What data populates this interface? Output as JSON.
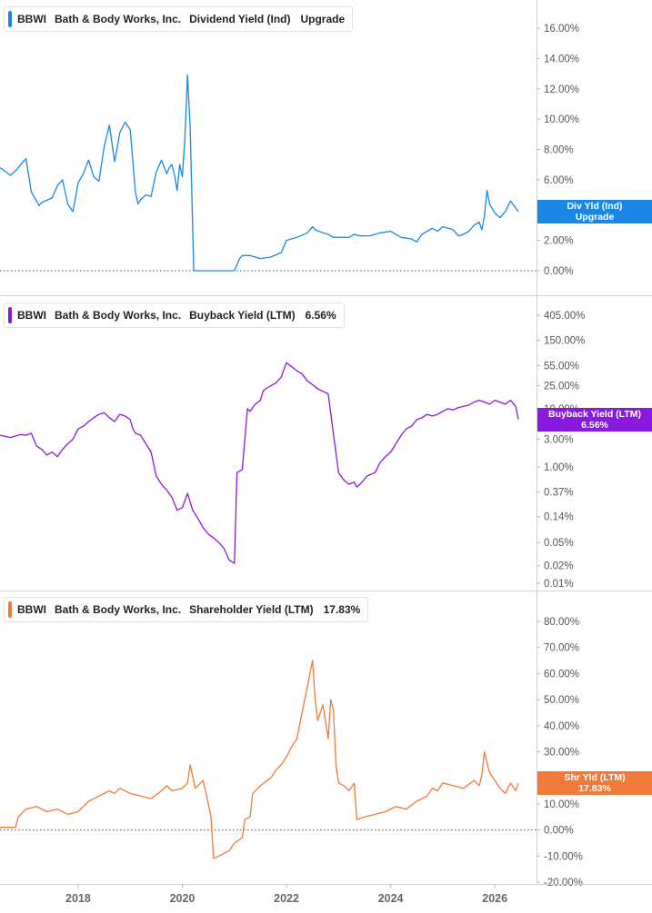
{
  "chart_data": [
    {
      "type": "line",
      "ticker": "BBWI",
      "company": "Bath & Body Works, Inc.",
      "metric": "Dividend Yield (Ind)",
      "legend_value": "Upgrade",
      "tag_line1": "Div Yld (Ind)",
      "tag_line2": "Upgrade",
      "color": "#1a87e6",
      "yscale": "linear",
      "ylim": [
        -0.8,
        17.8
      ],
      "ticks": [
        {
          "v": 16,
          "label": "16.00%"
        },
        {
          "v": 14,
          "label": "14.00%"
        },
        {
          "v": 12,
          "label": "12.00%"
        },
        {
          "v": 10,
          "label": "10.00%"
        },
        {
          "v": 8,
          "label": "8.00%"
        },
        {
          "v": 6,
          "label": "6.00%"
        },
        {
          "v": 4,
          "label": "4.00%"
        },
        {
          "v": 2,
          "label": "2.00%"
        },
        {
          "v": 0,
          "label": "0.00%"
        }
      ],
      "tag_value": 3.9,
      "zero_line": true,
      "series": [
        {
          "x": [
            2016.5,
            2016.7,
            2016.8,
            2016.9,
            2017.0,
            2017.1,
            2017.25,
            2017.3,
            2017.5,
            2017.6,
            2017.7,
            2017.8,
            2017.9,
            2018.0,
            2018.1,
            2018.2,
            2018.3,
            2018.4,
            2018.5,
            2018.6,
            2018.7,
            2018.75,
            2018.8,
            2018.9,
            2019.0,
            2019.1,
            2019.15,
            2019.2,
            2019.3,
            2019.4,
            2019.5,
            2019.6,
            2019.7,
            2019.75,
            2019.8,
            2019.85,
            2019.9,
            2019.95,
            2020.0,
            2020.05,
            2020.1,
            2020.15,
            2020.22,
            2020.25,
            2020.3,
            2020.35,
            2020.5,
            2020.8,
            2021.0,
            2021.1,
            2021.15,
            2021.3,
            2021.5,
            2021.7,
            2021.9,
            2022.0,
            2022.2,
            2022.4,
            2022.5,
            2022.55,
            2022.7,
            2022.8,
            2022.9,
            2023.0,
            2023.2,
            2023.3,
            2023.4,
            2023.6,
            2023.8,
            2024.0,
            2024.1,
            2024.2,
            2024.4,
            2024.5,
            2024.6,
            2024.7,
            2024.8,
            2024.9,
            2025.0,
            2025.2,
            2025.3,
            2025.4,
            2025.5,
            2025.6,
            2025.7,
            2025.75,
            2025.8,
            2025.85,
            2025.9,
            2026.0,
            2026.1,
            2026.2,
            2026.3,
            2026.45
          ],
          "values": [
            6.8,
            6.3,
            6.6,
            7.0,
            7.4,
            5.2,
            4.3,
            4.5,
            4.8,
            5.6,
            6.0,
            4.4,
            3.9,
            5.8,
            6.4,
            7.3,
            6.2,
            5.9,
            8.2,
            9.6,
            7.2,
            8.1,
            9.1,
            9.8,
            9.3,
            5.2,
            4.4,
            4.7,
            5.0,
            4.9,
            6.5,
            7.3,
            6.4,
            6.8,
            7.0,
            6.3,
            5.3,
            7.0,
            6.2,
            8.7,
            12.9,
            9.5,
            0,
            0,
            0,
            0,
            0,
            0,
            0,
            0.8,
            1.0,
            1.0,
            0.8,
            0.9,
            1.2,
            2.0,
            2.2,
            2.5,
            2.9,
            2.7,
            2.5,
            2.4,
            2.2,
            2.2,
            2.2,
            2.4,
            2.3,
            2.3,
            2.5,
            2.6,
            2.4,
            2.2,
            2.1,
            1.9,
            2.4,
            2.6,
            2.8,
            2.6,
            2.9,
            2.7,
            2.3,
            2.4,
            2.6,
            3.0,
            3.2,
            2.7,
            3.6,
            5.3,
            4.4,
            3.8,
            3.5,
            3.9,
            4.6,
            3.9
          ]
        }
      ]
    },
    {
      "type": "line",
      "ticker": "BBWI",
      "company": "Bath & Body Works, Inc.",
      "metric": "Buyback Yield (LTM)",
      "legend_value": "6.56%",
      "tag_line1": "Buyback Yield (LTM)",
      "tag_line2": "6.56%",
      "color": "#8a19e0",
      "yscale": "log",
      "ylim": [
        0.0085,
        620
      ],
      "ticks": [
        {
          "v": 405,
          "label": "405.00%"
        },
        {
          "v": 150,
          "label": "150.00%"
        },
        {
          "v": 55,
          "label": "55.00%"
        },
        {
          "v": 25,
          "label": "25.00%"
        },
        {
          "v": 10,
          "label": "10.00%"
        },
        {
          "v": 3,
          "label": "3.00%"
        },
        {
          "v": 1,
          "label": "1.00%"
        },
        {
          "v": 0.37,
          "label": "0.37%"
        },
        {
          "v": 0.14,
          "label": "0.14%"
        },
        {
          "v": 0.05,
          "label": "0.05%"
        },
        {
          "v": 0.02,
          "label": "0.02%"
        },
        {
          "v": 0.01,
          "label": "0.01%"
        }
      ],
      "tag_value": 6.56,
      "zero_line": false,
      "series": [
        {
          "x": [
            2016.5,
            2016.7,
            2016.9,
            2017.0,
            2017.1,
            2017.2,
            2017.3,
            2017.4,
            2017.5,
            2017.6,
            2017.7,
            2017.8,
            2017.9,
            2018.0,
            2018.1,
            2018.2,
            2018.3,
            2018.4,
            2018.5,
            2018.6,
            2018.7,
            2018.8,
            2018.9,
            2019.0,
            2019.05,
            2019.1,
            2019.2,
            2019.3,
            2019.4,
            2019.5,
            2019.6,
            2019.7,
            2019.8,
            2019.9,
            2020.0,
            2020.1,
            2020.2,
            2020.3,
            2020.4,
            2020.5,
            2020.6,
            2020.7,
            2020.8,
            2020.9,
            2021.0,
            2021.05,
            2021.15,
            2021.25,
            2021.3,
            2021.4,
            2021.5,
            2021.55,
            2021.6,
            2021.8,
            2021.9,
            2022.0,
            2022.2,
            2022.3,
            2022.4,
            2022.45,
            2022.55,
            2022.6,
            2022.8,
            2023.0,
            2023.1,
            2023.2,
            2023.3,
            2023.35,
            2023.45,
            2023.55,
            2023.7,
            2023.8,
            2023.9,
            2024.0,
            2024.1,
            2024.2,
            2024.3,
            2024.4,
            2024.5,
            2024.6,
            2024.7,
            2024.8,
            2024.9,
            2025.0,
            2025.1,
            2025.2,
            2025.3,
            2025.4,
            2025.5,
            2025.6,
            2025.7,
            2025.8,
            2025.9,
            2026.0,
            2026.1,
            2026.2,
            2026.3,
            2026.4,
            2026.45
          ],
          "values": [
            3.5,
            3.2,
            3.6,
            3.5,
            3.8,
            2.3,
            2.0,
            1.6,
            1.8,
            1.5,
            2.0,
            2.5,
            3.0,
            4.5,
            5.0,
            6.0,
            7.0,
            8.0,
            8.5,
            7.0,
            6.0,
            8.0,
            7.5,
            6.5,
            4.5,
            3.8,
            3.5,
            2.5,
            1.8,
            0.7,
            0.5,
            0.4,
            0.3,
            0.18,
            0.2,
            0.35,
            0.18,
            0.13,
            0.09,
            0.07,
            0.06,
            0.05,
            0.04,
            0.025,
            0.022,
            0.8,
            0.9,
            10,
            9,
            12,
            14,
            20,
            22,
            28,
            35,
            62,
            45,
            40,
            30,
            28,
            24,
            22,
            18,
            0.8,
            0.6,
            0.5,
            0.55,
            0.45,
            0.55,
            0.7,
            0.8,
            1.2,
            1.5,
            1.8,
            2.5,
            3.5,
            4.5,
            5.0,
            6.5,
            7.0,
            8.0,
            7.5,
            8.0,
            9.0,
            10,
            9.5,
            10.5,
            11,
            11.5,
            13,
            14,
            13,
            12,
            14,
            13,
            12,
            14,
            11,
            6.56
          ]
        }
      ]
    },
    {
      "type": "line",
      "ticker": "BBWI",
      "company": "Bath & Body Works, Inc.",
      "metric": "Shareholder Yield (LTM)",
      "legend_value": "17.83%",
      "tag_line1": "Shr Yld (LTM)",
      "tag_line2": "17.83%",
      "color": "#f07a3a",
      "yscale": "linear",
      "ylim": [
        -21,
        87
      ],
      "ticks": [
        {
          "v": 80,
          "label": "80.00%"
        },
        {
          "v": 70,
          "label": "70.00%"
        },
        {
          "v": 60,
          "label": "60.00%"
        },
        {
          "v": 50,
          "label": "50.00%"
        },
        {
          "v": 40,
          "label": "40.00%"
        },
        {
          "v": 30,
          "label": "30.00%"
        },
        {
          "v": 20,
          "label": "20.00%"
        },
        {
          "v": 10,
          "label": "10.00%"
        },
        {
          "v": 0,
          "label": "0.00%"
        },
        {
          "v": -10,
          "label": "-10.00%"
        },
        {
          "v": -20,
          "label": "-20.00%"
        }
      ],
      "tag_value": 17.83,
      "zero_line": true,
      "series": [
        {
          "x": [
            2016.5,
            2016.8,
            2016.85,
            2017.0,
            2017.2,
            2017.4,
            2017.6,
            2017.8,
            2018.0,
            2018.2,
            2018.4,
            2018.6,
            2018.7,
            2018.8,
            2019.0,
            2019.2,
            2019.4,
            2019.6,
            2019.7,
            2019.8,
            2020.0,
            2020.1,
            2020.15,
            2020.25,
            2020.4,
            2020.5,
            2020.55,
            2020.6,
            2020.7,
            2020.9,
            2021.0,
            2021.15,
            2021.2,
            2021.3,
            2021.35,
            2021.5,
            2021.7,
            2021.8,
            2021.9,
            2022.0,
            2022.1,
            2022.2,
            2022.3,
            2022.4,
            2022.5,
            2022.55,
            2022.6,
            2022.7,
            2022.8,
            2022.85,
            2022.9,
            2022.95,
            2023.0,
            2023.1,
            2023.2,
            2023.3,
            2023.35,
            2023.5,
            2023.7,
            2023.9,
            2024.1,
            2024.3,
            2024.5,
            2024.7,
            2024.8,
            2024.9,
            2025.0,
            2025.2,
            2025.4,
            2025.6,
            2025.7,
            2025.75,
            2025.8,
            2025.9,
            2026.0,
            2026.1,
            2026.2,
            2026.3,
            2026.4,
            2026.45
          ],
          "values": [
            1,
            1,
            5,
            8,
            9,
            7,
            8,
            6,
            7,
            11,
            13,
            15,
            14,
            16,
            14,
            13,
            12,
            15,
            17,
            15,
            16,
            18,
            25,
            16,
            19,
            10,
            5,
            -11,
            -10,
            -8,
            -5,
            -3,
            4,
            5,
            14,
            17,
            20,
            23,
            25,
            28,
            32,
            35,
            45,
            55,
            65,
            50,
            42,
            48,
            35,
            50,
            46,
            25,
            18,
            17,
            15,
            18,
            4,
            5,
            6,
            7,
            9,
            8,
            11,
            13,
            16,
            15,
            18,
            17,
            16,
            19,
            17,
            21,
            30,
            22,
            19,
            16,
            14,
            18,
            15,
            17.83
          ]
        }
      ]
    }
  ],
  "x_axis": {
    "range": [
      2016.5,
      2026.8
    ],
    "ticks": [
      {
        "v": 2018,
        "label": "2018"
      },
      {
        "v": 2020,
        "label": "2020"
      },
      {
        "v": 2022,
        "label": "2022"
      },
      {
        "v": 2024,
        "label": "2024"
      },
      {
        "v": 2026,
        "label": "2026"
      }
    ]
  }
}
